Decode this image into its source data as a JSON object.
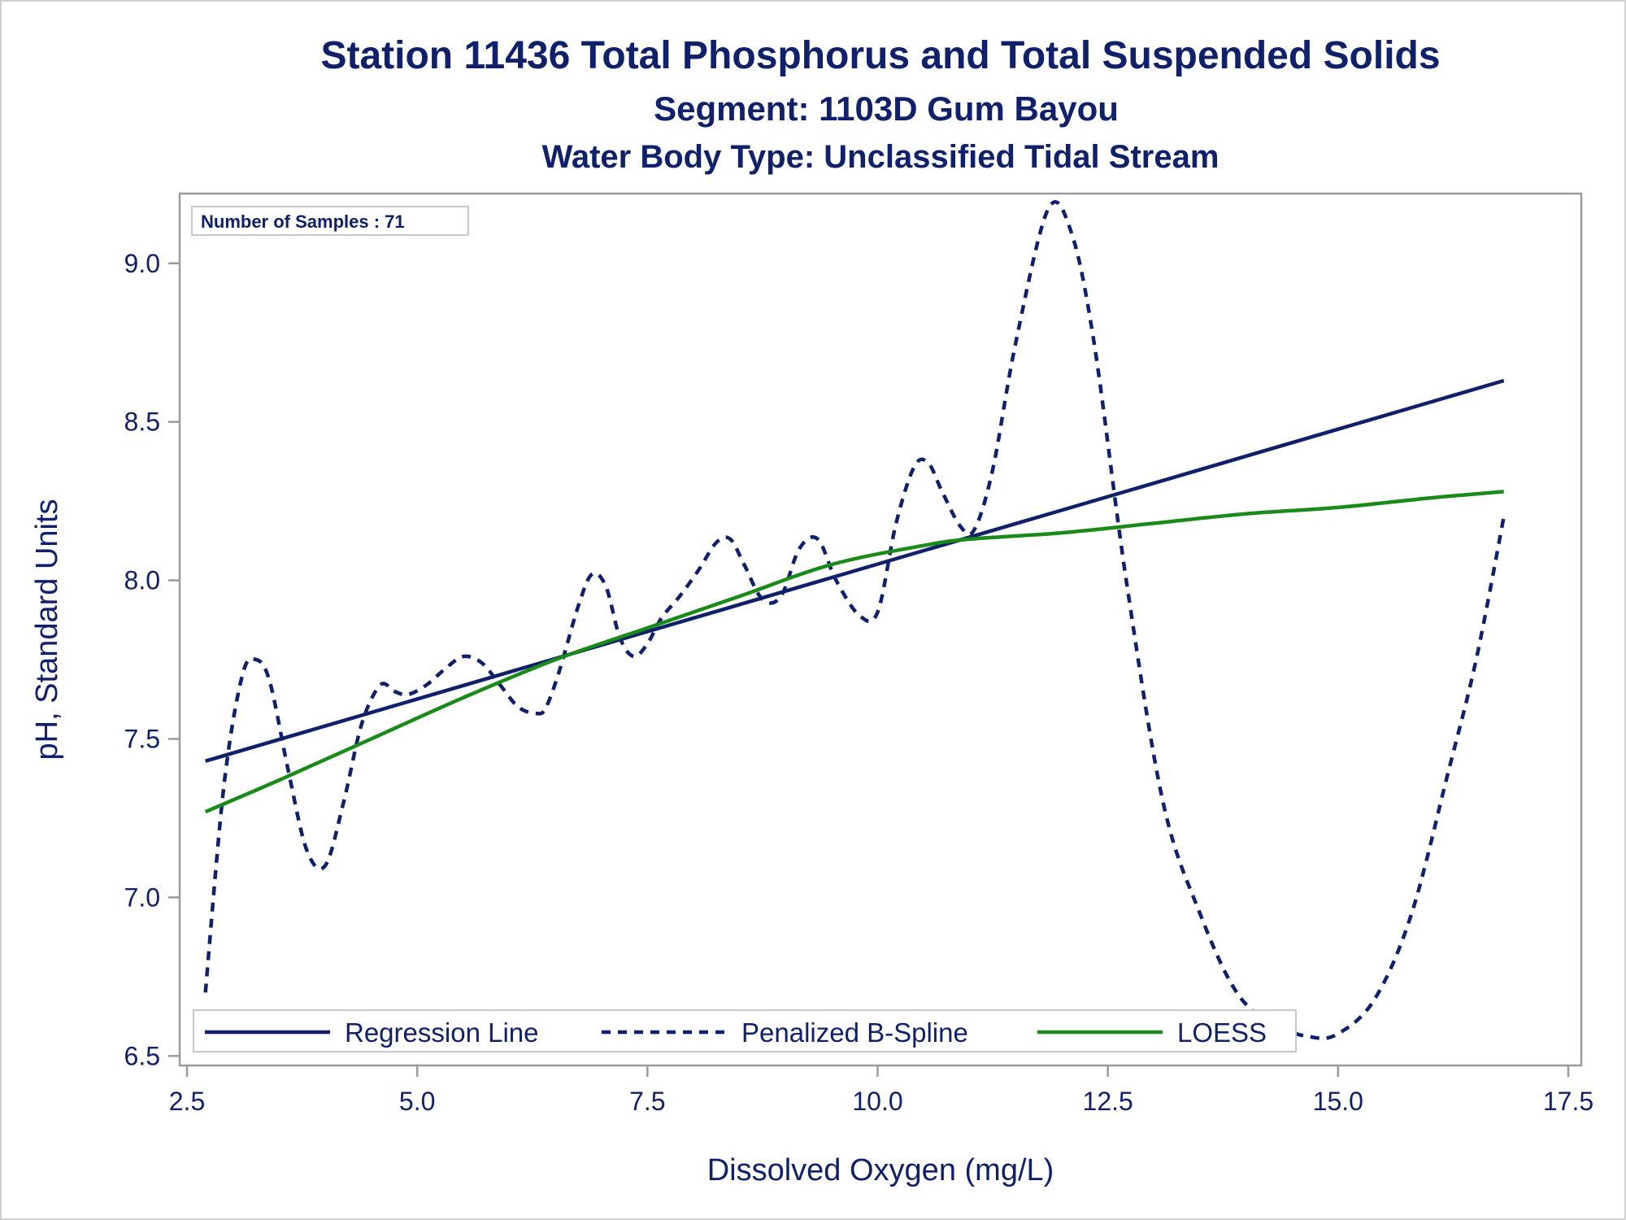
{
  "chart_data": {
    "type": "line",
    "title": "Station 11436  Total Phosphorus and Total Suspended Solids",
    "subtitle": "Segment: 1103D  Gum Bayou",
    "subtitle2": "Water Body Type: Unclassified Tidal Stream",
    "xlabel": "Dissolved Oxygen (mg/L)",
    "ylabel": "pH, Standard Units",
    "xlim": [
      2.5,
      17.5
    ],
    "ylim": [
      6.47,
      9.22
    ],
    "xticks": [
      2.5,
      5.0,
      7.5,
      10.0,
      12.5,
      15.0,
      17.5
    ],
    "xtick_labels": [
      "2.5",
      "5.0",
      "7.5",
      "10.0",
      "12.5",
      "15.0",
      "17.5"
    ],
    "yticks": [
      6.5,
      7.0,
      7.5,
      8.0,
      8.5,
      9.0
    ],
    "ytick_labels": [
      "6.5",
      "7.0",
      "7.5",
      "8.0",
      "8.5",
      "9.0"
    ],
    "grid": false,
    "legend_position": "bottom-inside",
    "inset_label": "Number of Samples : 71",
    "series": [
      {
        "name": "Regression Line",
        "style": "solid",
        "color": "#10206a",
        "x": [
          2.7,
          16.8
        ],
        "y": [
          7.43,
          8.63
        ]
      },
      {
        "name": "Penalized B-Spline",
        "style": "dashed",
        "color": "#10206a",
        "x": [
          2.7,
          2.9,
          3.1,
          3.25,
          3.4,
          3.6,
          3.8,
          4.0,
          4.2,
          4.4,
          4.6,
          4.75,
          4.9,
          5.1,
          5.3,
          5.5,
          5.7,
          5.9,
          6.1,
          6.3,
          6.4,
          6.55,
          6.75,
          6.9,
          7.05,
          7.2,
          7.35,
          7.5,
          7.65,
          7.85,
          8.05,
          8.25,
          8.4,
          8.55,
          8.75,
          8.95,
          9.15,
          9.35,
          9.55,
          9.8,
          10.0,
          10.2,
          10.4,
          10.55,
          10.7,
          10.9,
          11.05,
          11.25,
          11.5,
          11.85,
          12.1,
          12.35,
          12.7,
          13.1,
          13.5,
          13.9,
          14.3,
          14.7,
          15.0,
          15.4,
          15.8,
          16.2,
          16.5,
          16.8
        ],
        "y": [
          6.7,
          7.35,
          7.7,
          7.75,
          7.68,
          7.4,
          7.15,
          7.1,
          7.3,
          7.55,
          7.67,
          7.65,
          7.64,
          7.67,
          7.72,
          7.76,
          7.74,
          7.67,
          7.6,
          7.58,
          7.6,
          7.72,
          7.92,
          8.02,
          7.98,
          7.82,
          7.76,
          7.8,
          7.88,
          7.95,
          8.03,
          8.12,
          8.13,
          8.05,
          7.94,
          7.95,
          8.1,
          8.13,
          8.0,
          7.89,
          7.9,
          8.18,
          8.36,
          8.37,
          8.28,
          8.17,
          8.16,
          8.35,
          8.75,
          9.17,
          9.1,
          8.75,
          8.0,
          7.3,
          6.95,
          6.7,
          6.6,
          6.56,
          6.57,
          6.68,
          6.95,
          7.4,
          7.75,
          8.2
        ]
      },
      {
        "name": "LOESS",
        "style": "solid",
        "color": "#1a8a1a",
        "x": [
          2.7,
          3.5,
          4.5,
          5.5,
          6.5,
          7.5,
          8.5,
          9.5,
          10.5,
          11.0,
          12.0,
          13.0,
          14.0,
          15.0,
          16.0,
          16.8
        ],
        "y": [
          7.27,
          7.37,
          7.5,
          7.63,
          7.75,
          7.85,
          7.95,
          8.05,
          8.11,
          8.13,
          8.15,
          8.18,
          8.21,
          8.23,
          8.26,
          8.28
        ]
      }
    ]
  }
}
